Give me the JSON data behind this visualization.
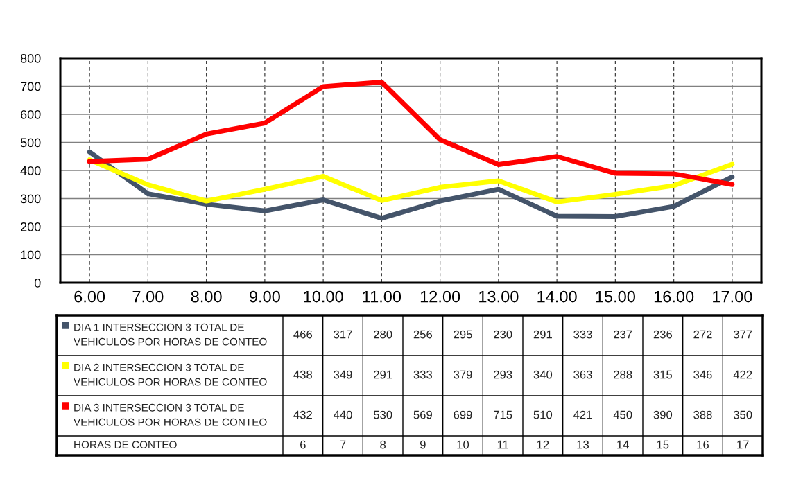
{
  "chart_data": {
    "type": "line",
    "annotations": [
      "466",
      "317",
      "280",
      "256",
      "295",
      "230",
      "291",
      "333",
      "237",
      "236",
      "272",
      "377",
      "438",
      "349",
      "291",
      "333",
      "379",
      "293",
      "340",
      "363",
      "288",
      "315",
      "346",
      "422",
      "432",
      "440",
      "530",
      "569",
      "699",
      "715",
      "510",
      "421",
      "450",
      "390",
      "388",
      "350",
      "HORAS DE CONTEO",
      "6",
      "7",
      "8",
      "9",
      "10",
      "11",
      "12",
      "13",
      "14",
      "15",
      "16",
      "17"
    ],
    "x": [
      6,
      7,
      8,
      9,
      10,
      11,
      12,
      13,
      14,
      15,
      16,
      17
    ],
    "xlim": [
      5.5,
      17.5
    ],
    "xticks": [
      {
        "value": 6,
        "label": "6.00"
      },
      {
        "value": 7,
        "label": "7.00"
      },
      {
        "value": 8,
        "label": "8.00"
      },
      {
        "value": 9,
        "label": "9.00"
      },
      {
        "value": 10,
        "label": "10.00"
      },
      {
        "value": 11,
        "label": "11.00"
      },
      {
        "value": 12,
        "label": "12.00"
      },
      {
        "value": 13,
        "label": "13.00"
      },
      {
        "value": 14,
        "label": "14.00"
      },
      {
        "value": 15,
        "label": "15.00"
      },
      {
        "value": 16,
        "label": "16.00"
      },
      {
        "value": 17,
        "label": "17.00"
      }
    ],
    "ylim": [
      0,
      800
    ],
    "yticks": [
      0,
      100,
      200,
      300,
      400,
      500,
      600,
      700,
      800
    ],
    "grid": true,
    "legend": "bottom",
    "marker": "none",
    "line_style": "solid",
    "series": [
      {
        "name": "DIA 1 INTERSECCION 3 TOTAL DE VEHICULOS POR HORAS DE CONTEO",
        "color": "#44546a",
        "values": [
          466,
          317,
          280,
          256,
          295,
          230,
          291,
          333,
          237,
          236,
          272,
          377
        ]
      },
      {
        "name": "DIA 2 INTERSECCION 3 TOTAL DE VEHICULOS POR HORAS DE CONTEO",
        "color": "#ffff00",
        "values": [
          438,
          349,
          291,
          333,
          379,
          293,
          340,
          363,
          288,
          315,
          346,
          422
        ]
      },
      {
        "name": "DIA 3 INTERSECCION 3 TOTAL DE VEHICULOS POR HORAS DE CONTEO",
        "color": "#ff0000",
        "values": [
          432,
          440,
          530,
          569,
          699,
          715,
          510,
          421,
          450,
          390,
          388,
          350
        ]
      }
    ]
  }
}
